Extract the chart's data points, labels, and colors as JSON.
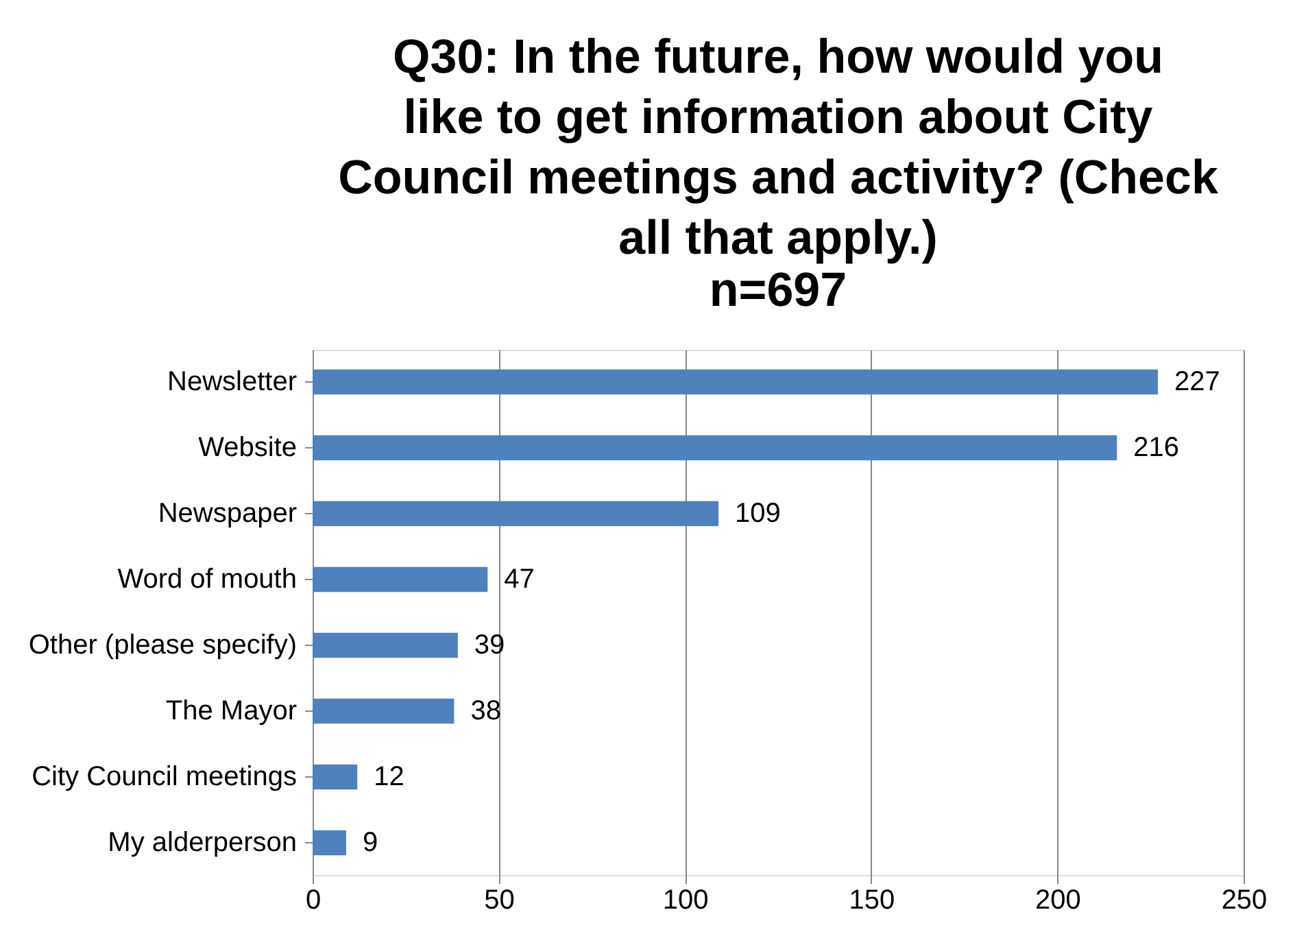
{
  "chart_data": {
    "type": "bar",
    "orientation": "horizontal",
    "title": "Q30: In the future, how would you like to get information about City Council meetings and activity? (Check all that apply.)",
    "subtitle": "n=697",
    "categories": [
      "Newsletter",
      "Website",
      "Newspaper",
      "Word of mouth",
      "Other (please specify)",
      "The Mayor",
      "City Council meetings",
      "My alderperson"
    ],
    "values": [
      227,
      216,
      109,
      47,
      39,
      38,
      12,
      9
    ],
    "color": "#4f81bd",
    "xlim": [
      0,
      250
    ],
    "xticks": [
      0,
      50,
      100,
      150,
      200,
      250
    ],
    "grid": "x",
    "data_labels": true
  }
}
